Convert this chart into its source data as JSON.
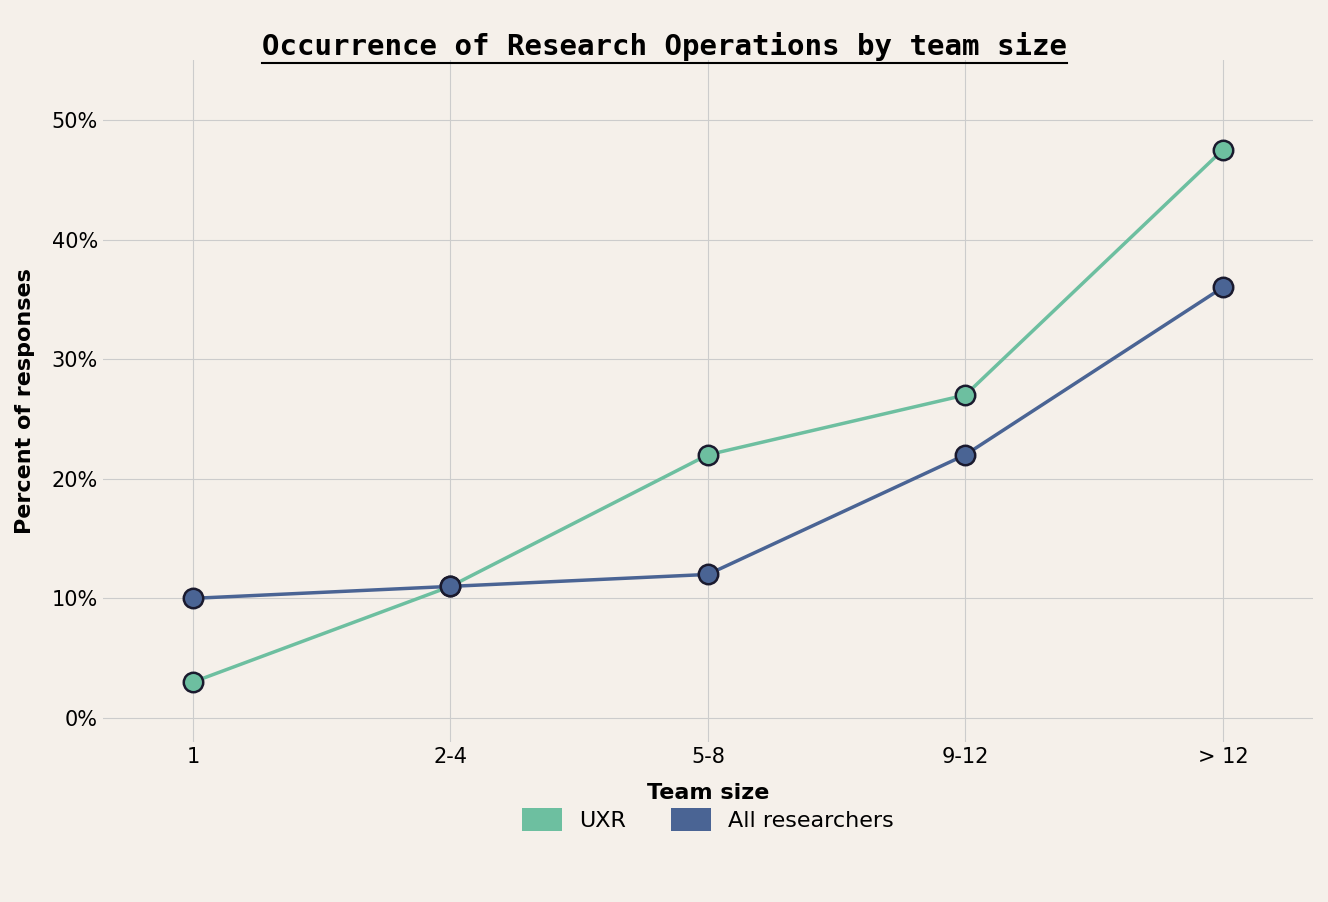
{
  "title": "Occurrence of Research Operations by team size",
  "xlabel": "Team size",
  "ylabel": "Percent of responses",
  "categories": [
    "1",
    "2-4",
    "5-8",
    "9-12",
    "> 12"
  ],
  "uxr_values": [
    3,
    11,
    22,
    27,
    47.5
  ],
  "all_values": [
    10,
    11,
    12,
    22,
    36
  ],
  "uxr_color": "#6dbfa0",
  "all_color": "#4a6494",
  "background_color": "#f5f0ea",
  "grid_color": "#cccccc",
  "yticks": [
    0,
    10,
    20,
    30,
    40,
    50
  ],
  "ylim": [
    -2,
    55
  ],
  "title_fontsize": 21,
  "axis_label_fontsize": 16,
  "tick_fontsize": 15,
  "legend_fontsize": 16,
  "marker_size": 14,
  "line_width": 2.5
}
